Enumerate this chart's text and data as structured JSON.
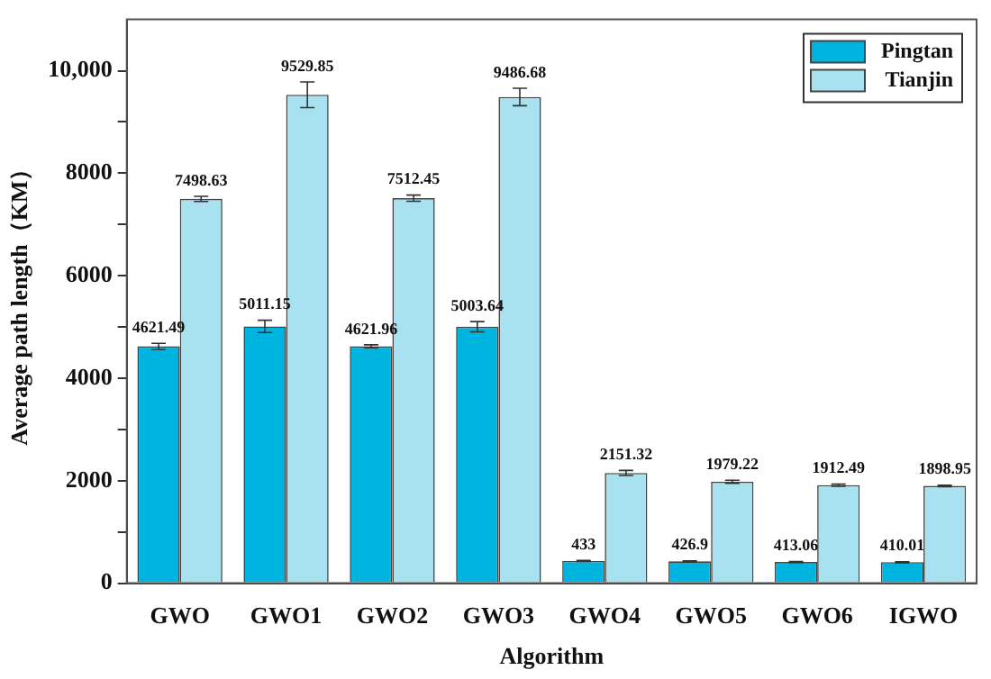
{
  "chart_data": {
    "type": "bar",
    "xlabel": "Algorithm",
    "ylabel": "Average path length（KM）",
    "categories": [
      "GWO",
      "GWO1",
      "GWO2",
      "GWO3",
      "GWO4",
      "GWO5",
      "GWO6",
      "IGWO"
    ],
    "series": [
      {
        "name": "Pingtan",
        "color": "#00b4e0",
        "values": [
          4621.49,
          5011.15,
          4621.96,
          5003.64,
          433,
          426.9,
          413.06,
          410.01
        ],
        "errors": [
          60,
          120,
          30,
          100,
          10,
          10,
          10,
          10
        ]
      },
      {
        "name": "Tianjin",
        "color": "#a8e2f0",
        "values": [
          7498.63,
          9529.85,
          7512.45,
          9486.68,
          2151.32,
          1979.22,
          1912.49,
          1898.95
        ],
        "errors": [
          50,
          250,
          60,
          170,
          50,
          30,
          20,
          15
        ]
      }
    ],
    "ylim": [
      0,
      11000
    ],
    "yticks": [
      0,
      {
        "value": 1000,
        "label": null
      },
      2000,
      {
        "value": 3000,
        "label": null
      },
      4000,
      {
        "value": 5000,
        "label": null
      },
      6000,
      {
        "value": 7000,
        "label": null
      },
      8000,
      {
        "value": 9000,
        "label": null
      },
      {
        "value": 10000,
        "label": "10,000"
      }
    ],
    "data_labels": true,
    "legend": "top right",
    "grid": false
  }
}
